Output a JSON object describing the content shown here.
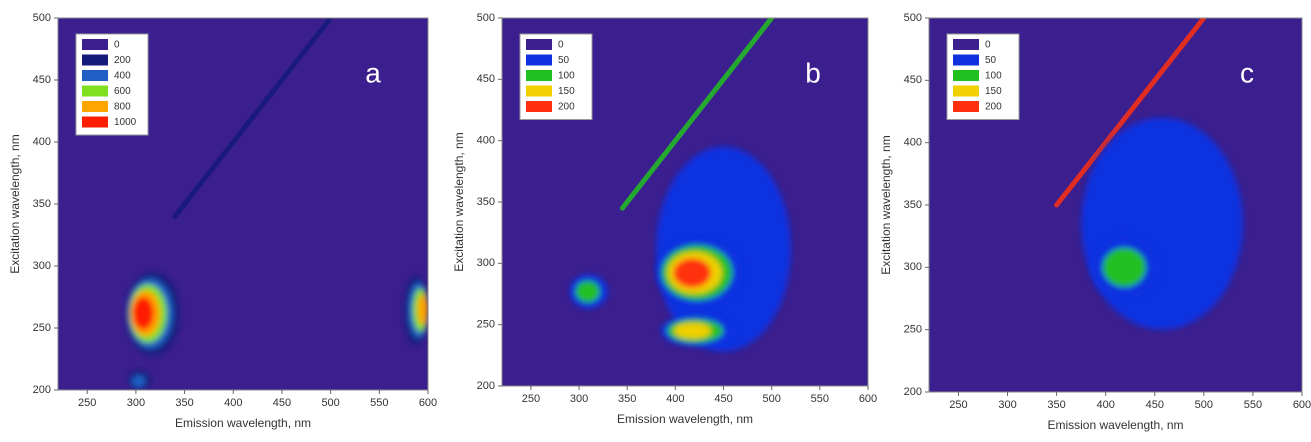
{
  "chart_data": [
    {
      "type": "contour",
      "label": "a",
      "x_label": "Emission wavelength, nm",
      "y_label": "Excitation wavelength, nm",
      "xlim": [
        220,
        600
      ],
      "xticks": [
        250,
        300,
        350,
        400,
        450,
        500,
        550,
        600
      ],
      "ylim": [
        200,
        500
      ],
      "yticks": [
        200,
        250,
        300,
        350,
        400,
        450,
        500
      ],
      "levels": [
        0,
        200,
        400,
        600,
        800,
        1000
      ],
      "colors": [
        "#3b1f8e",
        "#141a7a",
        "#1f5fc4",
        "#80e020",
        "#ffa500",
        "#ff1e00"
      ],
      "peaks": [
        {
          "em": 305,
          "ex": 262,
          "value": 1000,
          "em_span": [
            290,
            345
          ],
          "ex_span": [
            228,
            295
          ]
        },
        {
          "em": 597,
          "ex": 265,
          "value": 800,
          "em_span": [
            575,
            600
          ],
          "ex_span": [
            236,
            292
          ]
        },
        {
          "em": 302,
          "ex": 206,
          "value": 400,
          "em_span": [
            292,
            315
          ],
          "ex_span": [
            200,
            216
          ]
        }
      ],
      "diagonal": {
        "em": [
          340,
          500
        ],
        "ex": [
          340,
          500
        ],
        "value": 200
      }
    },
    {
      "type": "contour",
      "label": "b",
      "x_label": "Emission wavelength, nm",
      "y_label": "Excitation wavelength, nm",
      "xlim": [
        220,
        600
      ],
      "xticks": [
        250,
        300,
        350,
        400,
        450,
        500,
        550,
        600
      ],
      "ylim": [
        200,
        500
      ],
      "yticks": [
        200,
        250,
        300,
        350,
        400,
        450,
        500
      ],
      "levels": [
        0,
        50,
        100,
        150,
        200
      ],
      "colors": [
        "#3b1f8e",
        "#1030e0",
        "#20c020",
        "#f0d000",
        "#ff3010"
      ],
      "peaks": [
        {
          "em": 440,
          "ex": 320,
          "value": 50,
          "em_span": [
            380,
            520
          ],
          "ex_span": [
            228,
            395
          ]
        },
        {
          "em": 415,
          "ex": 292,
          "value": 200,
          "em_span": [
            380,
            470
          ],
          "ex_span": [
            265,
            320
          ]
        },
        {
          "em": 415,
          "ex": 245,
          "value": 150,
          "em_span": [
            385,
            462
          ],
          "ex_span": [
            232,
            258
          ]
        },
        {
          "em": 308,
          "ex": 277,
          "value": 100,
          "em_span": [
            290,
            330
          ],
          "ex_span": [
            263,
            291
          ]
        }
      ],
      "diagonal": {
        "em": [
          345,
          500
        ],
        "ex": [
          345,
          500
        ],
        "value": 100
      }
    },
    {
      "type": "contour",
      "label": "c",
      "x_label": "Emission wavelength, nm",
      "y_label": "Excitation wavelength, nm",
      "xlim": [
        220,
        600
      ],
      "xticks": [
        250,
        300,
        350,
        400,
        450,
        500,
        550,
        600
      ],
      "ylim": [
        200,
        500
      ],
      "yticks": [
        200,
        250,
        300,
        350,
        400,
        450,
        500
      ],
      "levels": [
        0,
        50,
        100,
        150,
        200
      ],
      "colors": [
        "#3b1f8e",
        "#1030e0",
        "#20c020",
        "#f0d000",
        "#ff3010"
      ],
      "peaks": [
        {
          "em": 450,
          "ex": 335,
          "value": 50,
          "em_span": [
            375,
            540
          ],
          "ex_span": [
            250,
            420
          ]
        },
        {
          "em": 418,
          "ex": 300,
          "value": 100,
          "em_span": [
            385,
            455
          ],
          "ex_span": [
            275,
            325
          ]
        }
      ],
      "diagonal": {
        "em": [
          350,
          500
        ],
        "ex": [
          350,
          500
        ],
        "value": 200
      }
    }
  ]
}
